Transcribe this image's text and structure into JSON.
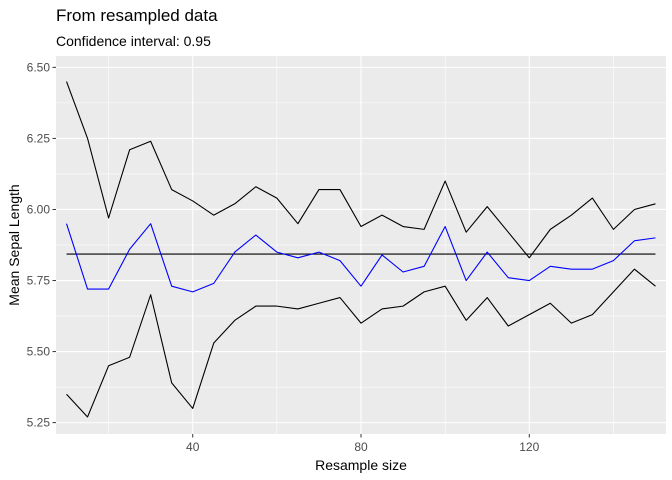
{
  "chart_data": {
    "type": "line",
    "title": "From resampled data",
    "subtitle": "Confidence interval: 0.95",
    "xlabel": "Resample size",
    "ylabel": "Mean Sepal Length",
    "xlim": [
      7.5,
      152.5
    ],
    "ylim": [
      5.21,
      6.54
    ],
    "x_ticks": [
      40,
      80,
      120
    ],
    "y_ticks": [
      5.25,
      5.5,
      5.75,
      6.0,
      6.25,
      6.5
    ],
    "x_tick_labels": [
      "40",
      "80",
      "120"
    ],
    "y_tick_labels": [
      "5.25",
      "5.50",
      "5.75",
      "6.00",
      "6.25",
      "6.50"
    ],
    "grid": true,
    "x": [
      10,
      15,
      20,
      25,
      30,
      35,
      40,
      45,
      50,
      55,
      60,
      65,
      70,
      75,
      80,
      85,
      90,
      95,
      100,
      105,
      110,
      115,
      120,
      125,
      130,
      135,
      140,
      145,
      150
    ],
    "series": [
      {
        "color": "#000000",
        "values": [
          6.45,
          6.25,
          5.97,
          6.21,
          6.24,
          6.07,
          6.03,
          5.98,
          6.02,
          6.08,
          6.04,
          5.95,
          6.07,
          6.07,
          5.94,
          5.98,
          5.94,
          5.93,
          6.1,
          5.92,
          6.01,
          5.92,
          5.83,
          5.93,
          5.98,
          6.04,
          5.93,
          6.0,
          6.02
        ]
      },
      {
        "color": "#0000ff",
        "values": [
          5.95,
          5.72,
          5.72,
          5.86,
          5.95,
          5.73,
          5.71,
          5.74,
          5.85,
          5.91,
          5.85,
          5.83,
          5.85,
          5.82,
          5.73,
          5.84,
          5.78,
          5.8,
          5.94,
          5.75,
          5.85,
          5.76,
          5.75,
          5.8,
          5.79,
          5.79,
          5.82,
          5.89,
          5.9
        ]
      },
      {
        "color": "#000000",
        "values": [
          5.35,
          5.27,
          5.45,
          5.48,
          5.7,
          5.39,
          5.3,
          5.53,
          5.61,
          5.66,
          5.66,
          5.65,
          5.67,
          5.69,
          5.6,
          5.65,
          5.66,
          5.71,
          5.73,
          5.61,
          5.69,
          5.59,
          5.63,
          5.67,
          5.6,
          5.63,
          5.71,
          5.79,
          5.73
        ]
      }
    ],
    "hline": {
      "value": 5.843,
      "color": "#000000"
    },
    "colors": {
      "panel": "#ebebeb",
      "grid": "#ffffff"
    }
  }
}
